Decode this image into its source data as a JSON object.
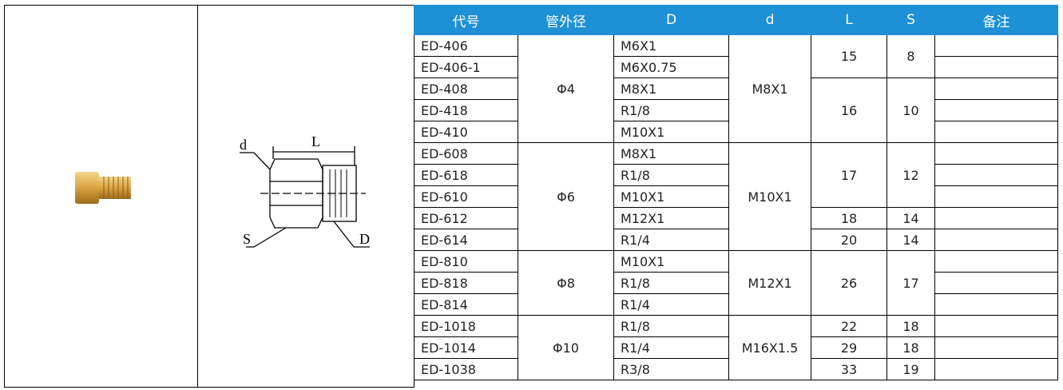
{
  "diagram": {
    "labels": [
      "d",
      "L",
      "S",
      "D"
    ]
  },
  "table": {
    "header": [
      "代号",
      "管外径",
      "D",
      "d",
      "L",
      "S",
      "备注"
    ],
    "rows": [
      {
        "code": "ED-406",
        "outer": "Φ4",
        "D": "M6X1",
        "d": "M8X1",
        "L": 15,
        "S": 8
      },
      {
        "code": "ED-406-1",
        "D": "M6X0.75"
      },
      {
        "code": "ED-408",
        "D": "M8X1",
        "L": 16,
        "S": 10
      },
      {
        "code": "ED-418",
        "D": "R1/8"
      },
      {
        "code": "ED-410",
        "D": "M10X1"
      },
      {
        "code": "ED-608",
        "outer": "Φ6",
        "D": "M8X1",
        "d": "M10X1",
        "L": 17,
        "S": 12
      },
      {
        "code": "ED-618",
        "D": "R1/8"
      },
      {
        "code": "ED-610",
        "D": "M10X1"
      },
      {
        "code": "ED-612",
        "D": "M12X1",
        "L": 18,
        "S": 14
      },
      {
        "code": "ED-614",
        "D": "R1/4",
        "L": 20,
        "S": 14
      },
      {
        "code": "ED-810",
        "outer": "Φ8",
        "D": "M10X1",
        "d": "M12X1",
        "L": 26,
        "S": 17
      },
      {
        "code": "ED-818",
        "D": "R1/8"
      },
      {
        "code": "ED-814",
        "D": "R1/4"
      },
      {
        "code": "ED-1018",
        "outer": "Φ10",
        "D": "R1/8",
        "d": "M16X1.5",
        "L": 22,
        "S": 18
      },
      {
        "code": "ED-1014",
        "D": "R1/4",
        "L": 29,
        "S": 18
      },
      {
        "code": "ED-1038",
        "D": "R3/8",
        "L": 33,
        "S": 19
      }
    ]
  }
}
